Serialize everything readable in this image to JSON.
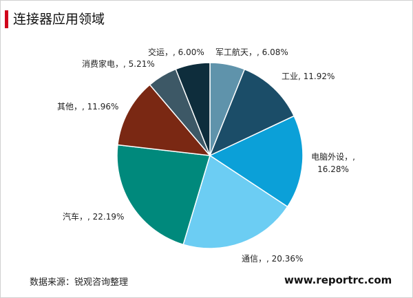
{
  "chart_data": {
    "type": "pie",
    "title": "连接器应用领域",
    "values": [
      6.08,
      11.92,
      16.28,
      20.36,
      22.19,
      11.96,
      5.21,
      6.0
    ],
    "value_labels": [
      "军工航天，, 6.08%",
      "工业, 11.92%",
      "电脑外设，, 16.28%",
      "通信，, 20.36%",
      "汽车，, 22.19%",
      "其他，, 11.96%",
      "消费家电，, 5.21%",
      "交运，, 6.00%"
    ],
    "colors": [
      "#5f93ab",
      "#1b4d68",
      "#0ba0d8",
      "#6ccdf3",
      "#00897c",
      "#7a2813",
      "#3d5866",
      "#0e2d3c"
    ],
    "source": "数据来源：锐观咨询整理",
    "website": "www.reportrc.com"
  }
}
